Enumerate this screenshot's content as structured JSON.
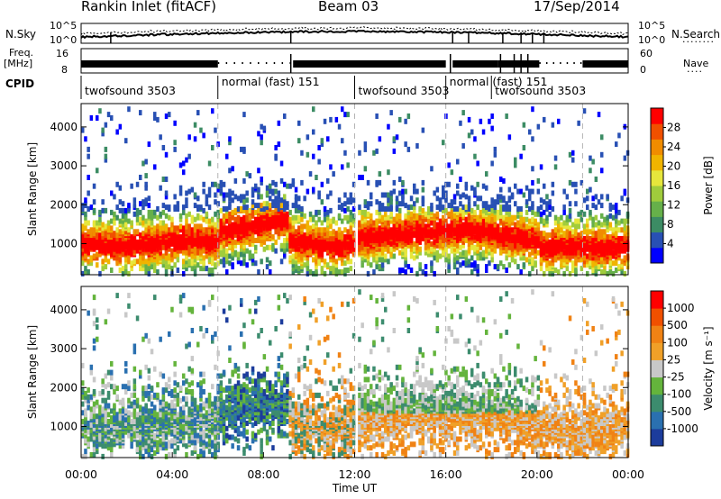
{
  "header": {
    "station": "Rankin Inlet (fitACF)",
    "beam": "Beam 03",
    "date": "17/Sep/2014"
  },
  "top_panels": {
    "nsky_label": "N.Sky",
    "nsearch_label": "N.Search",
    "nsky_ticks": [
      "10^5",
      "10^0"
    ],
    "nsearch_ticks": [
      "10^5",
      "10^0"
    ],
    "freq_label": "Freq.",
    "freq_unit": "[MHz]",
    "freq_ticks": [
      "16",
      "8"
    ],
    "nave_label": "Nave",
    "nave_ticks": [
      "60",
      "0"
    ],
    "cpid_label": "CPID"
  },
  "cpid_segments": [
    {
      "label": "twofsound 3503",
      "start": 0.0,
      "end": 6.0
    },
    {
      "label": "normal (fast) 151",
      "start": 6.0,
      "end": 12.0
    },
    {
      "label": "twofsound 3503",
      "start": 12.0,
      "end": 16.0
    },
    {
      "label": "normal (fast) 151",
      "start": 16.0,
      "end": 18.0
    },
    {
      "label": "twofsound 3503",
      "start": 18.0,
      "end": 22.0
    }
  ],
  "chart_data": [
    {
      "type": "heatmap",
      "name": "Power",
      "xlabel": "",
      "ylabel": "Slant Range [km]",
      "xlim": [
        0,
        24
      ],
      "ylim": [
        200,
        4600
      ],
      "yticks": [
        "1000",
        "2000",
        "3000",
        "4000"
      ],
      "colorbar_label": "Power [dB]",
      "colorbar_ticks": [
        "28",
        "24",
        "20",
        "16",
        "12",
        "8",
        "4"
      ],
      "colors": [
        "#0000ff",
        "#2850b4",
        "#3c8c64",
        "#66b04a",
        "#a0cc3c",
        "#e6e63c",
        "#f0b400",
        "#f08c00",
        "#f05000",
        "#ff0000"
      ]
    },
    {
      "type": "heatmap",
      "name": "Velocity",
      "xlabel": "Time UT",
      "ylabel": "Slant Range [km]",
      "xlim": [
        0,
        24
      ],
      "ylim": [
        200,
        4600
      ],
      "yticks": [
        "1000",
        "2000",
        "3000",
        "4000"
      ],
      "xticks": [
        "00:00",
        "04:00",
        "08:00",
        "12:00",
        "16:00",
        "20:00",
        "00:00"
      ],
      "colorbar_label": "Velocity [m s⁻¹]",
      "colorbar_ticks": [
        "1000",
        "500",
        "100",
        "25",
        "-25",
        "-100",
        "-500",
        "-1000"
      ],
      "colors": [
        "#1c3c9c",
        "#2a70b0",
        "#3c8c6e",
        "#64b43c",
        "#c8c8c8",
        "#f0a028",
        "#f08214",
        "#f05000",
        "#ff0000"
      ]
    }
  ]
}
